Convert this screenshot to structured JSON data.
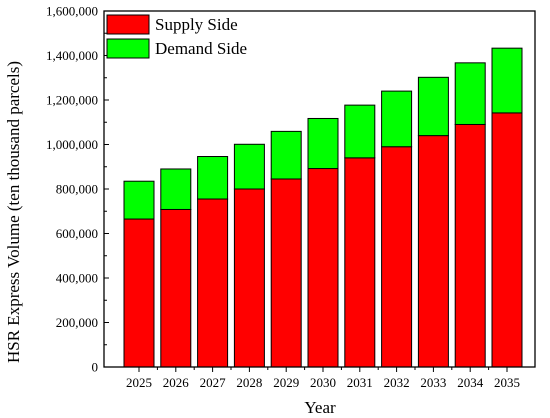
{
  "chart_data": {
    "type": "bar",
    "stacked": true,
    "categories": [
      "2025",
      "2026",
      "2027",
      "2028",
      "2029",
      "2030",
      "2031",
      "2032",
      "2033",
      "2034",
      "2035"
    ],
    "series": [
      {
        "name": "Supply Side",
        "color": "#ff0000",
        "values": [
          665000,
          708000,
          755000,
          800000,
          845000,
          892000,
          940000,
          990000,
          1040000,
          1090000,
          1142000
        ]
      },
      {
        "name": "Demand Side",
        "color": "#00ff00",
        "values": [
          170000,
          182000,
          191000,
          201000,
          214000,
          225000,
          237000,
          250000,
          262000,
          277000,
          291000
        ]
      }
    ],
    "xlabel": "Year",
    "ylabel": "HSR Express Volume (ten thousand parcels)",
    "ylim": [
      0,
      1600000
    ],
    "yticks": [
      0,
      200000,
      400000,
      600000,
      800000,
      1000000,
      1200000,
      1400000,
      1600000
    ],
    "ytick_labels": [
      "0",
      "200,000",
      "400,000",
      "600,000",
      "800,000",
      "1,000,000",
      "1,200,000",
      "1,400,000",
      "1,600,000"
    ],
    "legend_position": "top-left",
    "grid": false
  }
}
